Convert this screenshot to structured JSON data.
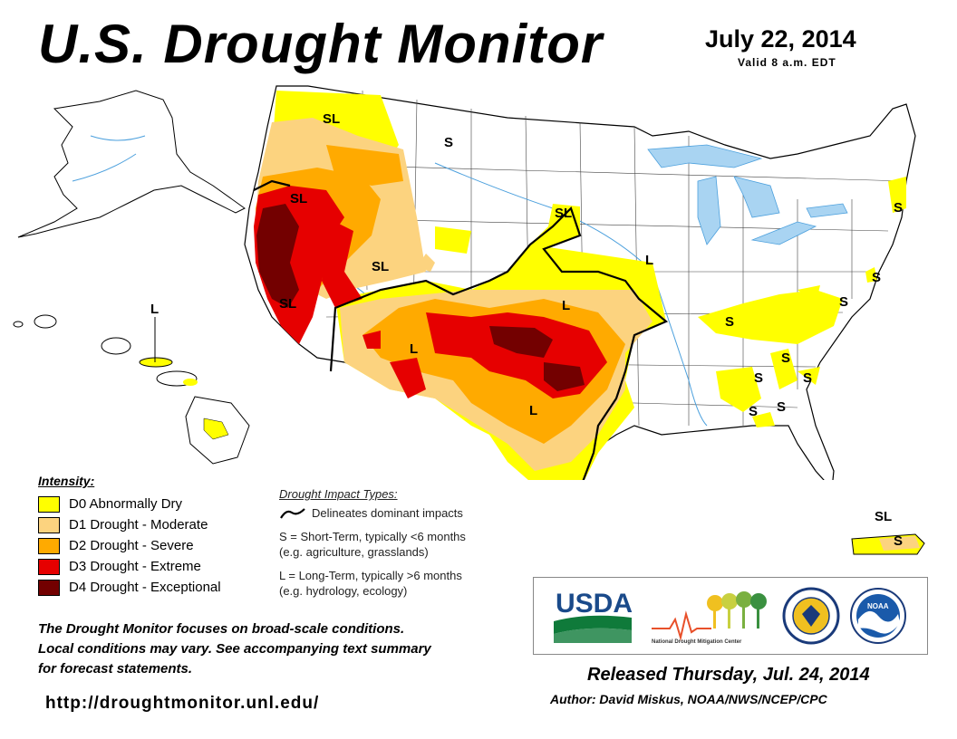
{
  "header": {
    "title": "U.S. Drought Monitor",
    "date": "July 22, 2014",
    "valid": "Valid 8 a.m. EDT"
  },
  "map_labels": {
    "sl": "SL",
    "s": "S",
    "l": "L"
  },
  "legend": {
    "title": "Intensity:",
    "items": [
      {
        "label": "D0 Abnormally Dry",
        "color": "#ffff00"
      },
      {
        "label": "D1 Drought - Moderate",
        "color": "#fcd37f"
      },
      {
        "label": "D2 Drought - Severe",
        "color": "#ffaa00"
      },
      {
        "label": "D3 Drought - Extreme",
        "color": "#e60000"
      },
      {
        "label": "D4 Drought - Exceptional",
        "color": "#730000"
      }
    ]
  },
  "impact": {
    "title": "Drought Impact Types:",
    "delineates": "Delineates dominant impacts",
    "short_term": "S = Short-Term, typically <6 months",
    "short_term_eg": "(e.g. agriculture, grasslands)",
    "long_term": "L = Long-Term, typically >6 months",
    "long_term_eg": "(e.g. hydrology, ecology)"
  },
  "note": {
    "line1": "The Drought Monitor focuses on broad-scale conditions.",
    "line2": "Local conditions may vary. See accompanying text summary",
    "line3": "for forecast statements."
  },
  "url": "http://droughtmonitor.unl.edu/",
  "logos": {
    "usda": "USDA",
    "ndmc": "National Drought Mitigation Center",
    "noaa": "NOAA"
  },
  "footer": {
    "released": "Released Thursday, Jul. 24, 2014",
    "author": "Author: David Miskus, NOAA/NWS/NCEP/CPC"
  }
}
